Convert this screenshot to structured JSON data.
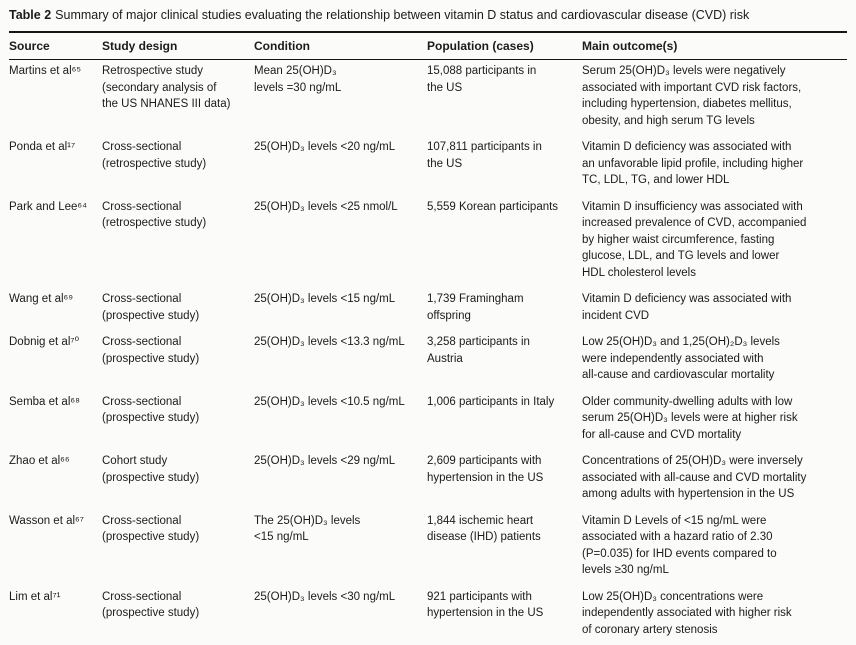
{
  "table": {
    "label": "Table 2",
    "caption": "Summary of major clinical studies evaluating the relationship between vitamin D status and cardiovascular disease (CVD) risk",
    "columns": [
      "Source",
      "Study design",
      "Condition",
      "Population (cases)",
      "Main outcome(s)"
    ],
    "rows": [
      {
        "source": "Martins et al⁶⁵",
        "design": "Retrospective study\n(secondary analysis of\nthe US NHANES III data)",
        "condition": "Mean 25(OH)D₃\nlevels =30 ng/mL",
        "population": "15,088 participants in\nthe US",
        "outcome": "Serum 25(OH)D₃ levels were negatively\nassociated with important CVD risk factors,\nincluding hypertension, diabetes mellitus,\nobesity, and high serum TG levels"
      },
      {
        "source": "Ponda et al¹⁷",
        "design": "Cross-sectional\n(retrospective study)",
        "condition": "25(OH)D₃ levels <20 ng/mL",
        "population": "107,811 participants in\nthe US",
        "outcome": "Vitamin D deficiency was associated with\nan unfavorable lipid profile, including higher\nTC, LDL, TG, and lower HDL"
      },
      {
        "source": "Park and Lee⁶⁴",
        "design": "Cross-sectional\n(retrospective study)",
        "condition": "25(OH)D₃ levels <25 nmol/L",
        "population": "5,559 Korean participants",
        "outcome": "Vitamin D insufficiency was associated with\nincreased prevalence of CVD, accompanied\nby higher waist circumference, fasting\nglucose, LDL, and TG levels and lower\nHDL cholesterol levels"
      },
      {
        "source": "Wang et al⁶⁹",
        "design": "Cross-sectional\n(prospective study)",
        "condition": "25(OH)D₃ levels <15 ng/mL",
        "population": "1,739 Framingham\noffspring",
        "outcome": "Vitamin D deficiency was associated with\nincident CVD"
      },
      {
        "source": "Dobnig et al⁷⁰",
        "design": "Cross-sectional\n(prospective study)",
        "condition": "25(OH)D₃ levels <13.3 ng/mL",
        "population": "3,258 participants in\nAustria",
        "outcome": "Low 25(OH)D₃ and 1,25(OH)₂D₃ levels\nwere independently associated with\nall-cause and cardiovascular mortality"
      },
      {
        "source": "Semba et al⁶⁸",
        "design": "Cross-sectional\n(prospective study)",
        "condition": "25(OH)D₃ levels <10.5 ng/mL",
        "population": "1,006 participants in Italy",
        "outcome": "Older community-dwelling adults with low\nserum 25(OH)D₃ levels were at higher risk\nfor all-cause and CVD mortality"
      },
      {
        "source": "Zhao et al⁶⁶",
        "design": "Cohort study\n(prospective study)",
        "condition": "25(OH)D₃ levels <29 ng/mL",
        "population": "2,609 participants with\nhypertension in the US",
        "outcome": "Concentrations of 25(OH)D₃ were inversely\nassociated with all-cause and CVD mortality\namong adults with hypertension in the US"
      },
      {
        "source": "Wasson et al⁶⁷",
        "design": "Cross-sectional\n(prospective study)",
        "condition": "The 25(OH)D₃ levels\n<15 ng/mL",
        "population": "1,844 ischemic heart\ndisease (IHD) patients",
        "outcome": "Vitamin D Levels of <15 ng/mL were\nassociated with a hazard ratio of 2.30\n(P=0.035) for IHD events compared to\nlevels ≥30 ng/mL"
      },
      {
        "source": "Lim et al⁷¹",
        "design": "Cross-sectional\n(prospective study)",
        "condition": "25(OH)D₃ levels <30 ng/mL",
        "population": "921 participants with\nhypertension in the US",
        "outcome": "Low 25(OH)D₃ concentrations were\nindependently associated with higher risk\nof coronary artery stenosis"
      }
    ]
  }
}
